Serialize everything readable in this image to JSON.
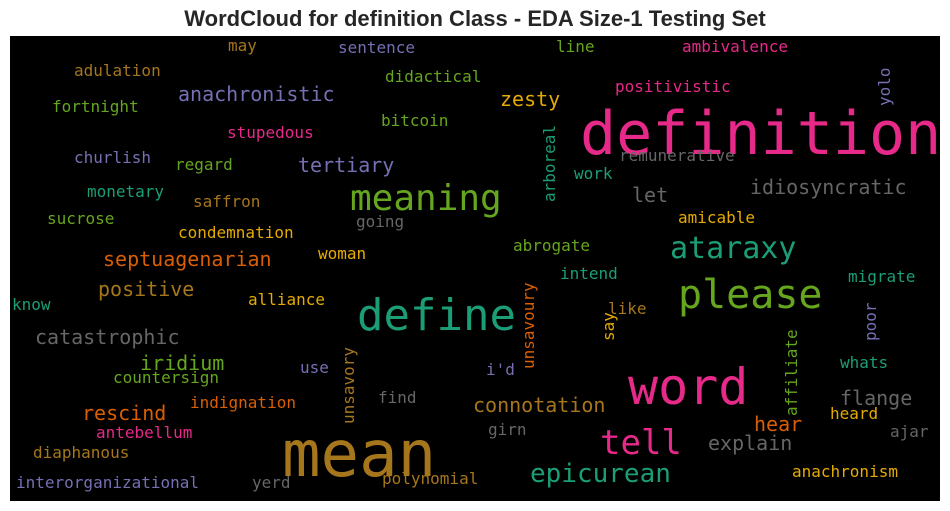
{
  "chart_data": {
    "type": "wordcloud",
    "title": "WordCloud for definition Class - EDA Size-1 Testing Set",
    "background": "#000000",
    "colormap": "Dark2",
    "words": [
      {
        "text": "mean",
        "weight": 1.0,
        "color": "#a6761d"
      },
      {
        "text": "definition",
        "weight": 0.9,
        "color": "#e7298a"
      },
      {
        "text": "word",
        "weight": 0.8,
        "color": "#e7298a"
      },
      {
        "text": "define",
        "weight": 0.7,
        "color": "#1b9e77"
      },
      {
        "text": "please",
        "weight": 0.67,
        "color": "#66a61e"
      },
      {
        "text": "meaning",
        "weight": 0.62,
        "color": "#66a61e"
      },
      {
        "text": "tell",
        "weight": 0.6,
        "color": "#e7298a"
      },
      {
        "text": "ataraxy",
        "weight": 0.55,
        "color": "#1b9e77"
      },
      {
        "text": "epicurean",
        "weight": 0.5,
        "color": "#1b9e77"
      },
      {
        "text": "connotation",
        "weight": 0.42,
        "color": "#a6761d"
      },
      {
        "text": "septuagenarian",
        "weight": 0.42,
        "color": "#d95f02"
      },
      {
        "text": "positive",
        "weight": 0.42,
        "color": "#a6761d"
      },
      {
        "text": "catastrophic",
        "weight": 0.42,
        "color": "#666666"
      },
      {
        "text": "rescind",
        "weight": 0.42,
        "color": "#d95f02"
      },
      {
        "text": "iridium",
        "weight": 0.42,
        "color": "#66a61e"
      },
      {
        "text": "flange",
        "weight": 0.42,
        "color": "#666666"
      },
      {
        "text": "explain",
        "weight": 0.42,
        "color": "#666666"
      },
      {
        "text": "hear",
        "weight": 0.42,
        "color": "#d95f02"
      },
      {
        "text": "idiosyncratic",
        "weight": 0.4,
        "color": "#666666"
      },
      {
        "text": "tertiary",
        "weight": 0.4,
        "color": "#7570b3"
      },
      {
        "text": "anachronistic",
        "weight": 0.4,
        "color": "#7570b3"
      },
      {
        "text": "zesty",
        "weight": 0.4,
        "color": "#e6ab02"
      },
      {
        "text": "let",
        "weight": 0.38,
        "color": "#666666"
      },
      {
        "text": "anachronism",
        "weight": 0.3,
        "color": "#e6ab02"
      },
      {
        "text": "interorganizational",
        "weight": 0.3,
        "color": "#7570b3"
      },
      {
        "text": "polynomial",
        "weight": 0.3,
        "color": "#a6761d"
      },
      {
        "text": "yerd",
        "weight": 0.3,
        "color": "#666666"
      },
      {
        "text": "diaphanous",
        "weight": 0.3,
        "color": "#a6761d"
      },
      {
        "text": "antebellum",
        "weight": 0.3,
        "color": "#e7298a"
      },
      {
        "text": "girn",
        "weight": 0.3,
        "color": "#666666"
      },
      {
        "text": "ajar",
        "weight": 0.3,
        "color": "#666666"
      },
      {
        "text": "heard",
        "weight": 0.3,
        "color": "#e6ab02"
      },
      {
        "text": "indignation",
        "weight": 0.3,
        "color": "#d95f02"
      },
      {
        "text": "find",
        "weight": 0.3,
        "color": "#666666"
      },
      {
        "text": "countersign",
        "weight": 0.3,
        "color": "#66a61e"
      },
      {
        "text": "use",
        "weight": 0.3,
        "color": "#7570b3"
      },
      {
        "text": "i'd",
        "weight": 0.3,
        "color": "#7570b3"
      },
      {
        "text": "whats",
        "weight": 0.3,
        "color": "#1b9e77"
      },
      {
        "text": "say",
        "weight": 0.3,
        "color": "#e6ab02"
      },
      {
        "text": "like",
        "weight": 0.3,
        "color": "#a6761d"
      },
      {
        "text": "know",
        "weight": 0.3,
        "color": "#1b9e77"
      },
      {
        "text": "alliance",
        "weight": 0.3,
        "color": "#e6ab02"
      },
      {
        "text": "migrate",
        "weight": 0.3,
        "color": "#1b9e77"
      },
      {
        "text": "intend",
        "weight": 0.3,
        "color": "#1b9e77"
      },
      {
        "text": "abrogate",
        "weight": 0.3,
        "color": "#66a61e"
      },
      {
        "text": "woman",
        "weight": 0.3,
        "color": "#e6ab02"
      },
      {
        "text": "condemnation",
        "weight": 0.3,
        "color": "#e6ab02"
      },
      {
        "text": "amicable",
        "weight": 0.3,
        "color": "#e6ab02"
      },
      {
        "text": "going",
        "weight": 0.3,
        "color": "#666666"
      },
      {
        "text": "sucrose",
        "weight": 0.3,
        "color": "#66a61e"
      },
      {
        "text": "saffron",
        "weight": 0.3,
        "color": "#a6761d"
      },
      {
        "text": "monetary",
        "weight": 0.3,
        "color": "#1b9e77"
      },
      {
        "text": "work",
        "weight": 0.3,
        "color": "#1b9e77"
      },
      {
        "text": "churlish",
        "weight": 0.3,
        "color": "#7570b3"
      },
      {
        "text": "regard",
        "weight": 0.3,
        "color": "#66a61e"
      },
      {
        "text": "remunerative",
        "weight": 0.3,
        "color": "#666666"
      },
      {
        "text": "stupedous",
        "weight": 0.3,
        "color": "#e7298a"
      },
      {
        "text": "bitcoin",
        "weight": 0.3,
        "color": "#66a61e"
      },
      {
        "text": "fortnight",
        "weight": 0.3,
        "color": "#66a61e"
      },
      {
        "text": "positivistic",
        "weight": 0.3,
        "color": "#e7298a"
      },
      {
        "text": "adulation",
        "weight": 0.3,
        "color": "#a6761d"
      },
      {
        "text": "didactical",
        "weight": 0.3,
        "color": "#66a61e"
      },
      {
        "text": "may",
        "weight": 0.3,
        "color": "#a6761d"
      },
      {
        "text": "sentence",
        "weight": 0.3,
        "color": "#7570b3"
      },
      {
        "text": "line",
        "weight": 0.3,
        "color": "#66a61e"
      },
      {
        "text": "ambivalence",
        "weight": 0.3,
        "color": "#e7298a"
      },
      {
        "text": "yolo",
        "weight": 0.3,
        "color": "#7570b3"
      },
      {
        "text": "arboreal",
        "weight": 0.3,
        "color": "#1b9e77"
      },
      {
        "text": "unsavoury",
        "weight": 0.3,
        "color": "#d95f02"
      },
      {
        "text": "unsavory",
        "weight": 0.3,
        "color": "#a6761d"
      },
      {
        "text": "affiliate",
        "weight": 0.3,
        "color": "#66a61e"
      },
      {
        "text": "poor",
        "weight": 0.3,
        "color": "#7570b3"
      }
    ]
  }
}
